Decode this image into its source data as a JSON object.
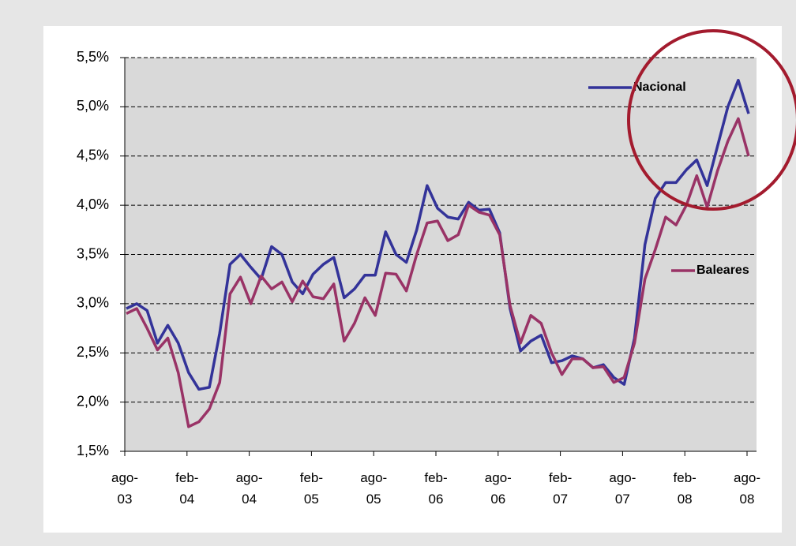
{
  "chart_data": {
    "type": "line",
    "categories": [
      "ago-03",
      null,
      null,
      null,
      null,
      null,
      "feb-04",
      null,
      null,
      null,
      null,
      null,
      "ago-04",
      null,
      null,
      null,
      null,
      null,
      "feb-05",
      null,
      null,
      null,
      null,
      null,
      "ago-05",
      null,
      null,
      null,
      null,
      null,
      "feb-06",
      null,
      null,
      null,
      null,
      null,
      "ago-06",
      null,
      null,
      null,
      null,
      null,
      "feb-07",
      null,
      null,
      null,
      null,
      null,
      "ago-07",
      null,
      null,
      null,
      null,
      null,
      "feb-08",
      null,
      null,
      null,
      null,
      null,
      "ago-08"
    ],
    "series": [
      {
        "name": "Nacional",
        "color": "#333399",
        "values": [
          2.95,
          3.0,
          2.93,
          2.6,
          2.78,
          2.6,
          2.3,
          2.13,
          2.15,
          2.7,
          3.4,
          3.5,
          3.37,
          3.25,
          3.58,
          3.5,
          3.22,
          3.1,
          3.3,
          3.4,
          3.47,
          3.06,
          3.15,
          3.29,
          3.29,
          3.73,
          3.5,
          3.42,
          3.75,
          4.2,
          3.97,
          3.88,
          3.86,
          4.03,
          3.95,
          3.96,
          3.72,
          2.95,
          2.52,
          2.62,
          2.68,
          2.4,
          2.42,
          2.47,
          2.44,
          2.35,
          2.38,
          2.25,
          2.18,
          2.65,
          3.6,
          4.07,
          4.23,
          4.23,
          4.36,
          4.46,
          4.2,
          4.6,
          5.0,
          5.27,
          4.93
        ]
      },
      {
        "name": "Baleares",
        "color": "#993366",
        "values": [
          2.9,
          2.95,
          2.75,
          2.53,
          2.65,
          2.3,
          1.75,
          1.8,
          1.93,
          2.2,
          3.1,
          3.27,
          3.0,
          3.28,
          3.15,
          3.22,
          3.02,
          3.23,
          3.07,
          3.05,
          3.2,
          2.62,
          2.8,
          3.06,
          2.88,
          3.31,
          3.3,
          3.13,
          3.5,
          3.82,
          3.84,
          3.64,
          3.7,
          4.0,
          3.93,
          3.9,
          3.7,
          2.98,
          2.6,
          2.88,
          2.8,
          2.5,
          2.28,
          2.44,
          2.44,
          2.35,
          2.36,
          2.2,
          2.25,
          2.6,
          3.25,
          3.55,
          3.88,
          3.8,
          4.0,
          4.3,
          3.98,
          4.35,
          4.65,
          4.88,
          4.5
        ]
      }
    ],
    "ylim": [
      1.5,
      5.5
    ],
    "yticks": [
      {
        "value": 1.5,
        "label": "1,5%"
      },
      {
        "value": 2.0,
        "label": "2,0%"
      },
      {
        "value": 2.5,
        "label": "2,5%"
      },
      {
        "value": 3.0,
        "label": "3,0%"
      },
      {
        "value": 3.5,
        "label": "3,5%"
      },
      {
        "value": 4.0,
        "label": "4,0%"
      },
      {
        "value": 4.5,
        "label": "4,5%"
      },
      {
        "value": 5.0,
        "label": "5,0%"
      },
      {
        "value": 5.5,
        "label": "5,5%"
      }
    ],
    "grid": true
  }
}
